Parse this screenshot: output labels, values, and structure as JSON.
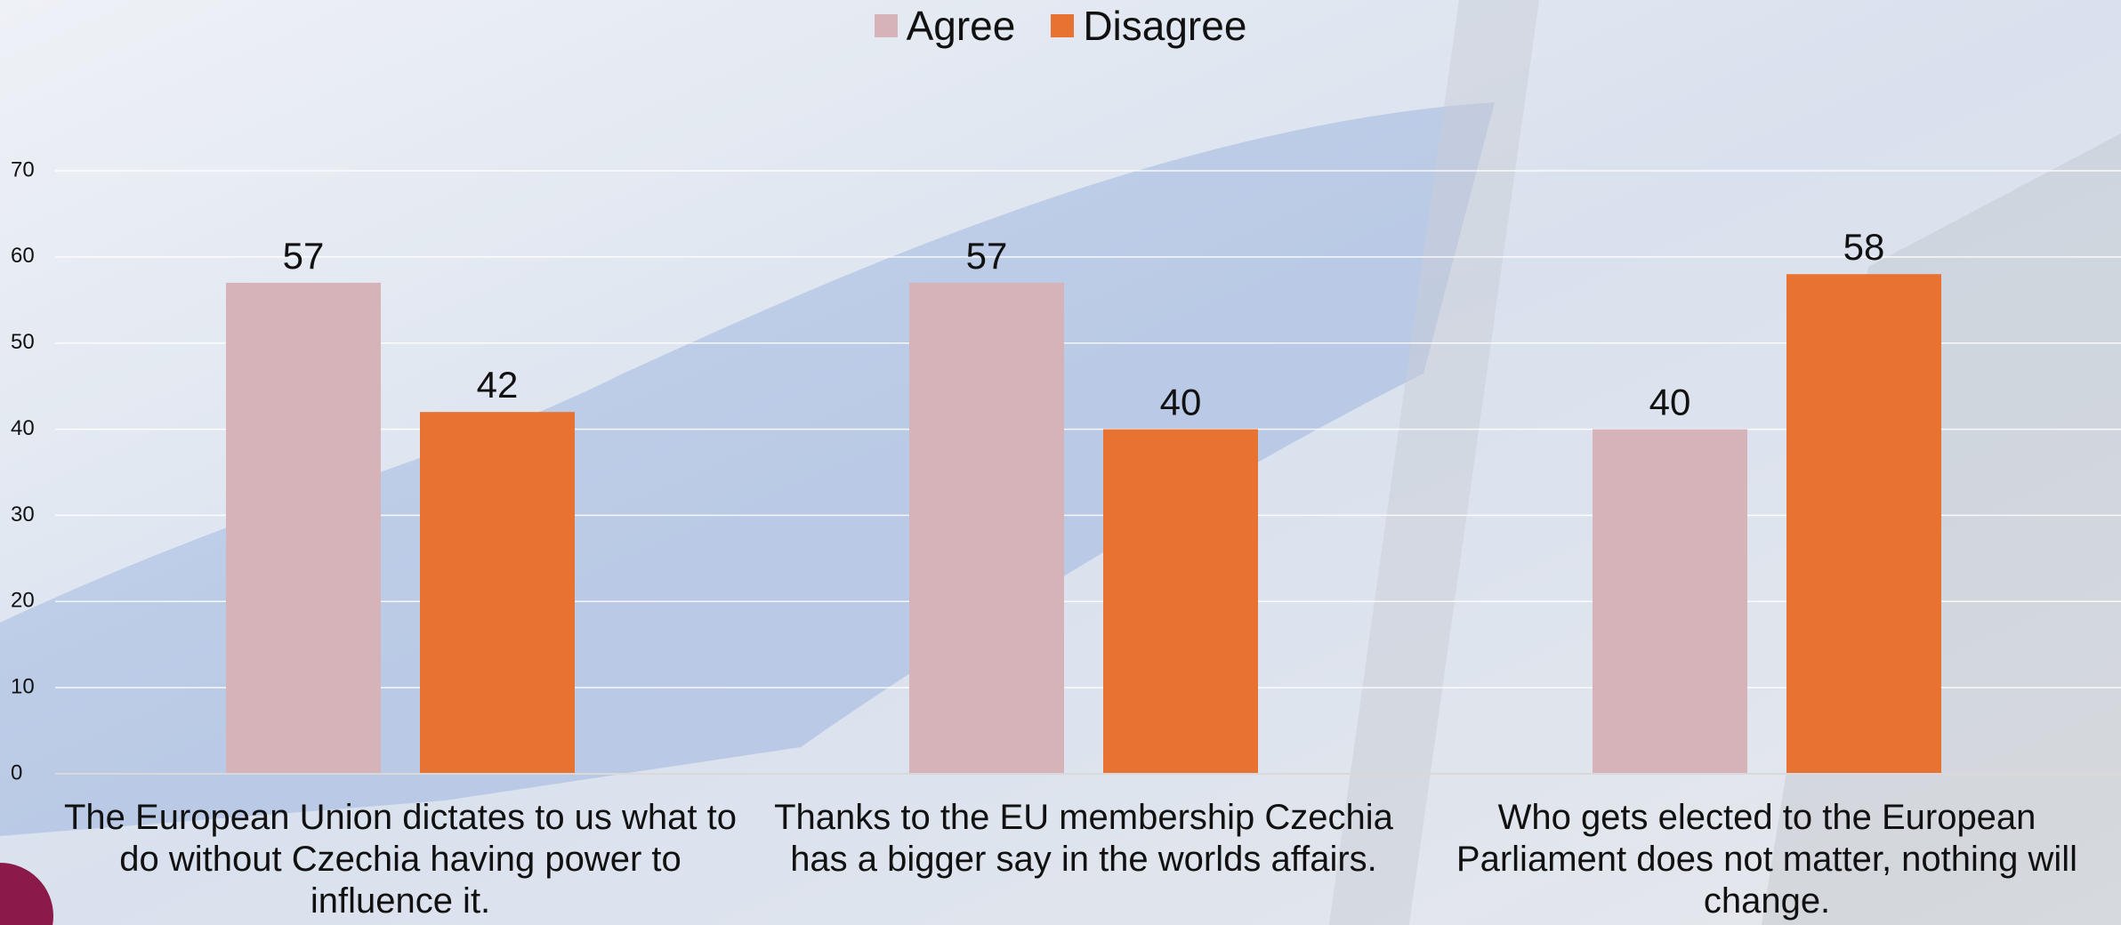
{
  "chart_data": {
    "type": "bar",
    "categories": [
      "The European Union dictates to us what to do without Czechia having power to influence it.",
      "Thanks to the EU membership Czechia has a bigger say in the worlds affairs.",
      "Who gets elected to the European Parliament does not matter, nothing will change."
    ],
    "series": [
      {
        "name": "Agree",
        "color": "#d5b3b9",
        "values": [
          57,
          57,
          40
        ]
      },
      {
        "name": "Disagree",
        "color": "#e87232",
        "values": [
          42,
          40,
          58
        ]
      }
    ],
    "ylim": [
      0,
      70
    ],
    "yticks": [
      0,
      10,
      20,
      30,
      40,
      50,
      60,
      70
    ],
    "grid": true,
    "legend": "top"
  }
}
